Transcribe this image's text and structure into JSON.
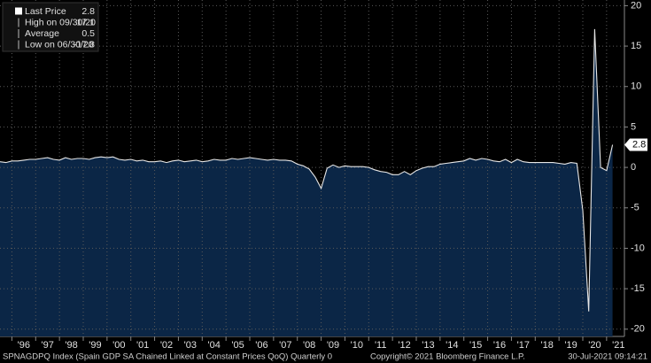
{
  "chart_data": {
    "type": "area",
    "x": [
      1995.5,
      1995.75,
      1996,
      1996.25,
      1996.5,
      1996.75,
      1997,
      1997.25,
      1997.5,
      1997.75,
      1998,
      1998.25,
      1998.5,
      1998.75,
      1999,
      1999.25,
      1999.5,
      1999.75,
      2000,
      2000.25,
      2000.5,
      2000.75,
      2001,
      2001.25,
      2001.5,
      2001.75,
      2002,
      2002.25,
      2002.5,
      2002.75,
      2003,
      2003.25,
      2003.5,
      2003.75,
      2004,
      2004.25,
      2004.5,
      2004.75,
      2005,
      2005.25,
      2005.5,
      2005.75,
      2006,
      2006.25,
      2006.5,
      2006.75,
      2007,
      2007.25,
      2007.5,
      2007.75,
      2008,
      2008.25,
      2008.5,
      2008.75,
      2009,
      2009.25,
      2009.5,
      2009.75,
      2010,
      2010.25,
      2010.5,
      2010.75,
      2011,
      2011.25,
      2011.5,
      2011.75,
      2012,
      2012.25,
      2012.5,
      2012.75,
      2013,
      2013.25,
      2013.5,
      2013.75,
      2014,
      2014.25,
      2014.5,
      2014.75,
      2015,
      2015.25,
      2015.5,
      2015.75,
      2016,
      2016.25,
      2016.5,
      2016.75,
      2017,
      2017.25,
      2017.5,
      2017.75,
      2018,
      2018.25,
      2018.5,
      2018.75,
      2019,
      2019.25,
      2019.5,
      2019.75,
      2020,
      2020.25,
      2020.5,
      2020.75,
      2021,
      2021.25
    ],
    "values": [
      0.7,
      0.6,
      0.8,
      0.8,
      0.9,
      1.0,
      1.0,
      1.1,
      1.2,
      1.0,
      0.9,
      1.2,
      1.0,
      1.1,
      1.1,
      1.0,
      1.2,
      1.3,
      1.2,
      1.3,
      1.0,
      0.9,
      1.0,
      0.8,
      0.9,
      0.7,
      0.7,
      0.8,
      0.6,
      0.8,
      0.9,
      0.7,
      0.8,
      0.9,
      0.7,
      0.8,
      1.0,
      0.9,
      0.9,
      1.1,
      1.0,
      1.1,
      1.2,
      1.1,
      1.0,
      0.9,
      1.0,
      0.9,
      0.9,
      0.8,
      0.4,
      0.2,
      -0.2,
      -1.2,
      -2.6,
      -0.1,
      0.3,
      0.0,
      0.2,
      0.1,
      0.1,
      0.1,
      0.0,
      -0.3,
      -0.5,
      -0.6,
      -0.9,
      -0.9,
      -0.5,
      -0.9,
      -0.4,
      -0.1,
      0.1,
      0.1,
      0.4,
      0.5,
      0.6,
      0.7,
      0.8,
      1.1,
      0.9,
      1.1,
      1.0,
      0.8,
      0.7,
      1.0,
      0.6,
      1.0,
      0.7,
      0.6,
      0.6,
      0.6,
      0.6,
      0.6,
      0.5,
      0.4,
      0.6,
      0.5,
      -5.3,
      -17.8,
      17.1,
      0.0,
      -0.4,
      2.8
    ],
    "color": "#e6e6e6",
    "fill": "#0b2646",
    "xlim": [
      1995.5,
      2021.75
    ],
    "ylim": [
      -20.9,
      20.7
    ],
    "yticks": [
      20,
      15,
      10,
      5,
      0,
      -5,
      -10,
      -15,
      -20
    ],
    "xticks": [
      {
        "value": 1996,
        "label": "'96"
      },
      {
        "value": 1997,
        "label": "'97"
      },
      {
        "value": 1998,
        "label": "'98"
      },
      {
        "value": 1999,
        "label": "'99"
      },
      {
        "value": 2000,
        "label": "'00"
      },
      {
        "value": 2001,
        "label": "'01"
      },
      {
        "value": 2002,
        "label": "'02"
      },
      {
        "value": 2003,
        "label": "'03"
      },
      {
        "value": 2004,
        "label": "'04"
      },
      {
        "value": 2005,
        "label": "'05"
      },
      {
        "value": 2006,
        "label": "'06"
      },
      {
        "value": 2007,
        "label": "'07"
      },
      {
        "value": 2008,
        "label": "'08"
      },
      {
        "value": 2009,
        "label": "'09"
      },
      {
        "value": 2010,
        "label": "'10"
      },
      {
        "value": 2011,
        "label": "'11"
      },
      {
        "value": 2012,
        "label": "'12"
      },
      {
        "value": 2013,
        "label": "'13"
      },
      {
        "value": 2014,
        "label": "'14"
      },
      {
        "value": 2015,
        "label": "'15"
      },
      {
        "value": 2016,
        "label": "'16"
      },
      {
        "value": 2017,
        "label": "'17"
      },
      {
        "value": 2018,
        "label": "'18"
      },
      {
        "value": 2019,
        "label": "'19"
      },
      {
        "value": 2020,
        "label": "'20"
      },
      {
        "value": 2021,
        "label": "'21"
      }
    ],
    "grid": true,
    "legend": [
      {
        "label": "Last Price",
        "value": 2.8
      },
      {
        "label": "High on 09/30/20",
        "value": 17.1
      },
      {
        "label": "Average",
        "value": 0.5
      },
      {
        "label": "Low on 06/30/20",
        "value": -17.8
      }
    ],
    "footer": {
      "index": "SPNAGDPQ Index (Spain GDP SA Chained Linked at Constant Prices QoQ)  Quarterly 0",
      "copyright": "Copyright© 2021 Bloomberg Finance L.P.",
      "timestamp": "30-Jul-2021 09:14:21"
    }
  }
}
